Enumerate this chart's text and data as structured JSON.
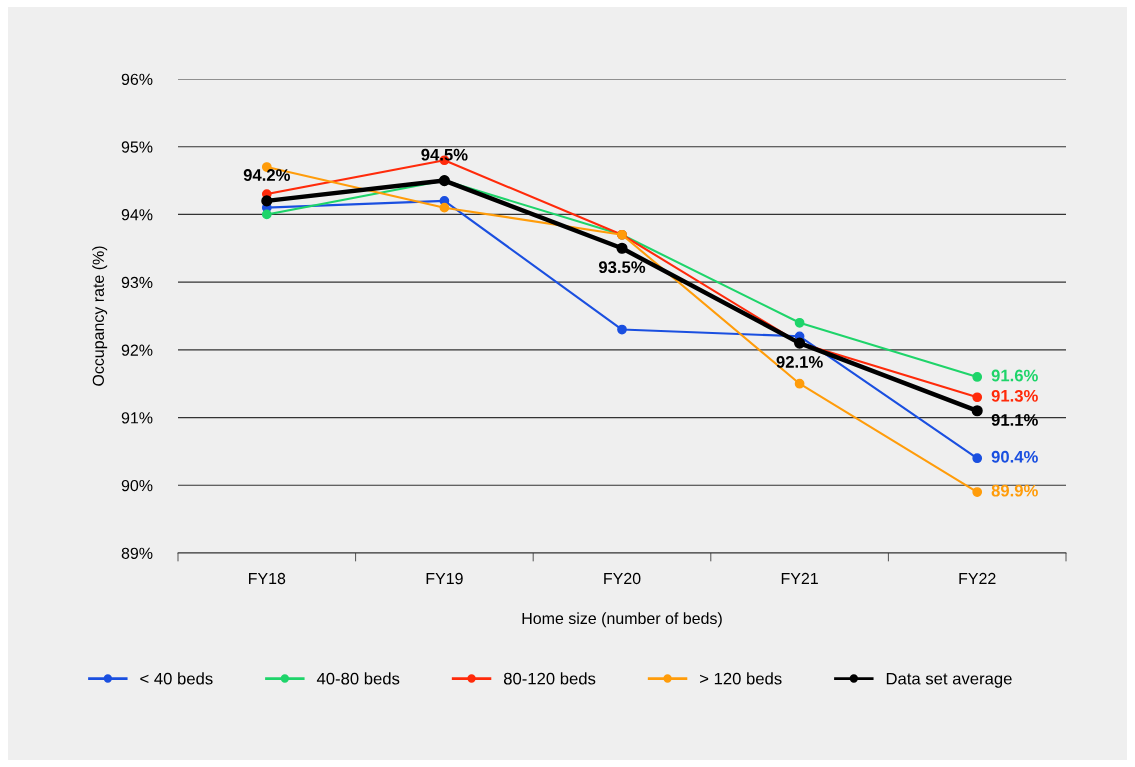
{
  "chart_data": {
    "type": "line",
    "xlabel": "Home size (number of beds)",
    "ylabel": "Occupancy rate (%)",
    "categories": [
      "FY18",
      "FY19",
      "FY20",
      "FY21",
      "FY22"
    ],
    "series": [
      {
        "name": "< 40 beds",
        "color": "#1a4fe0",
        "values": [
          94.1,
          94.2,
          92.3,
          92.2,
          90.4
        ],
        "value_labels": [
          null,
          null,
          null,
          null,
          "90.4%"
        ]
      },
      {
        "name": "40-80 beds",
        "color": "#1ed46a",
        "values": [
          94.0,
          94.5,
          93.7,
          92.4,
          91.6
        ],
        "value_labels": [
          null,
          null,
          null,
          null,
          "91.6%"
        ]
      },
      {
        "name": "80-120 beds",
        "color": "#ff2a0a",
        "values": [
          94.3,
          94.8,
          93.7,
          92.1,
          91.3
        ],
        "value_labels": [
          null,
          null,
          null,
          null,
          "91.3%"
        ]
      },
      {
        "name": "> 120 beds",
        "color": "#ff9c0a",
        "values": [
          94.7,
          94.1,
          93.7,
          91.5,
          89.9
        ],
        "value_labels": [
          null,
          null,
          null,
          null,
          "89.9%"
        ]
      },
      {
        "name": "Data set average",
        "color": "#000000",
        "values": [
          94.2,
          94.5,
          93.5,
          92.1,
          91.1
        ],
        "value_labels": [
          "94.2%",
          "94.5%",
          "93.5%",
          "92.1%",
          "91.1%"
        ]
      }
    ],
    "ylim": [
      89,
      96
    ],
    "yticks": [
      {
        "value": 89,
        "label": "89%"
      },
      {
        "value": 90,
        "label": "90%"
      },
      {
        "value": 91,
        "label": "91%"
      },
      {
        "value": 92,
        "label": "92%"
      },
      {
        "value": 93,
        "label": "93%"
      },
      {
        "value": 94,
        "label": "94%"
      },
      {
        "value": 95,
        "label": "95%"
      },
      {
        "value": 96,
        "label": "96%"
      }
    ],
    "grid": "y",
    "legend": "bottom",
    "marker": "circle",
    "line_style": "solid"
  }
}
